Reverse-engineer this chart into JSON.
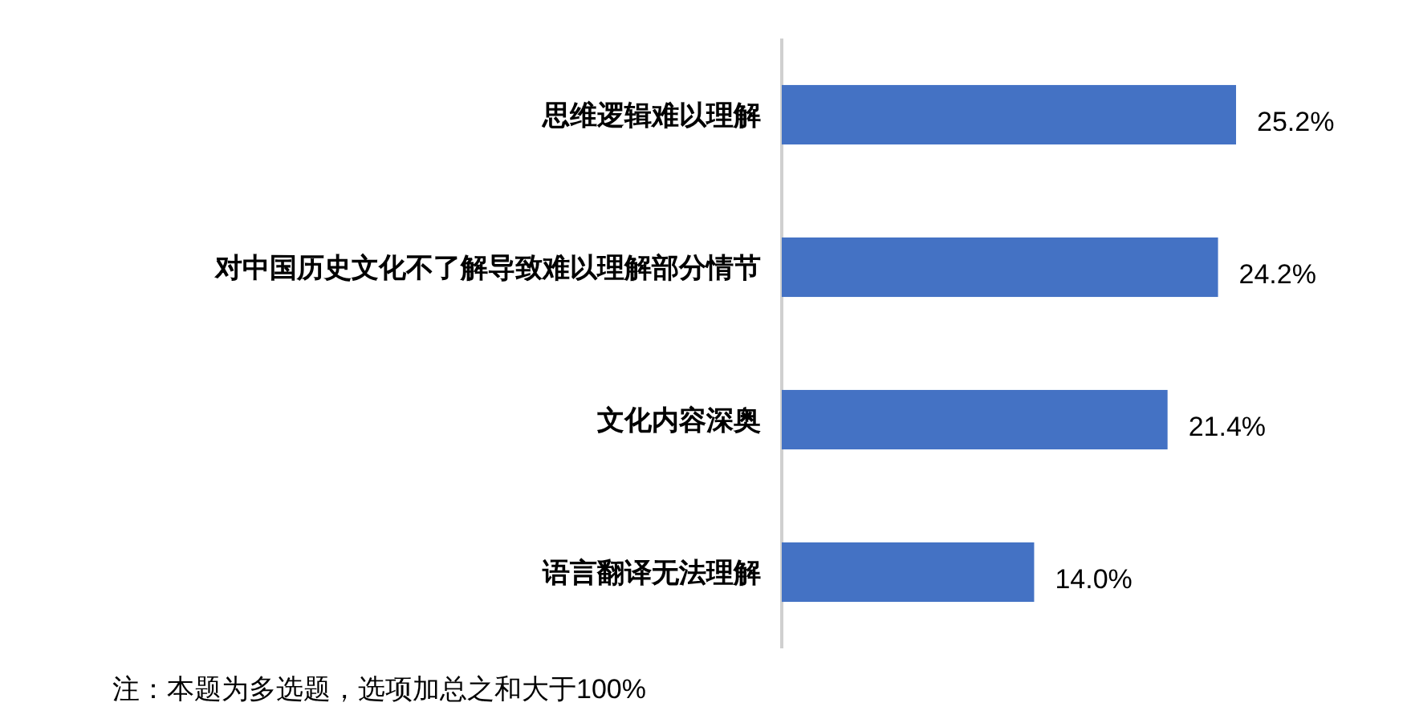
{
  "chart_data": {
    "type": "bar",
    "orientation": "horizontal",
    "categories": [
      "思维逻辑难以理解",
      "对中国历史文化不了解导致难以理解部分情节",
      "文化内容深奥",
      "语言翻译无法理解"
    ],
    "values": [
      25.2,
      24.2,
      21.4,
      14.0
    ],
    "value_labels": [
      "25.2%",
      "24.2%",
      "21.4%",
      "14.0%"
    ],
    "color": "#4472c4",
    "annotations": [
      "注：本题为多选题，选项加总之和大于100%"
    ]
  }
}
